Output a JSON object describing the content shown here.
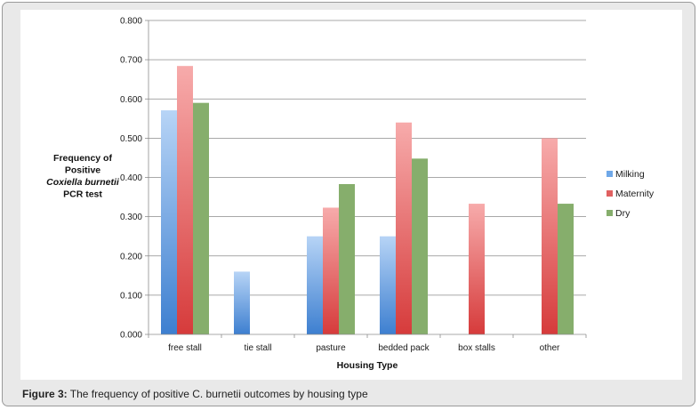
{
  "caption": {
    "label": "Figure 3:",
    "text": " The frequency of positive C. burnetii outcomes by housing type"
  },
  "chart_data": {
    "type": "bar",
    "title": "",
    "xlabel": "Housing Type",
    "ylabel_lines": [
      {
        "text": "Frequency of",
        "italic": false
      },
      {
        "text": "Positive",
        "italic": false
      },
      {
        "text": "Coxiella burnetii",
        "italic": true
      },
      {
        "text": "PCR test",
        "italic": false
      }
    ],
    "ylim": [
      0,
      0.8
    ],
    "yticks": [
      0,
      0.1,
      0.2,
      0.3,
      0.4,
      0.5,
      0.6,
      0.7,
      0.8
    ],
    "ytick_labels": [
      "0.000",
      "0.100",
      "0.200",
      "0.300",
      "0.400",
      "0.500",
      "0.600",
      "0.700",
      "0.800"
    ],
    "grid": true,
    "legend_position": "right",
    "categories": [
      "free stall",
      "tie stall",
      "pasture",
      "bedded pack",
      "box stalls",
      "other"
    ],
    "series": [
      {
        "name": "Milking",
        "color": "#6fa8e8",
        "values": [
          0.571,
          0.16,
          0.25,
          0.25,
          null,
          null
        ]
      },
      {
        "name": "Maternity",
        "color": "#e06060",
        "values": [
          0.684,
          null,
          0.323,
          0.54,
          0.333,
          0.5
        ]
      },
      {
        "name": "Dry",
        "color": "#86ae6c",
        "values": [
          0.59,
          null,
          0.383,
          0.448,
          null,
          0.333
        ]
      }
    ]
  }
}
